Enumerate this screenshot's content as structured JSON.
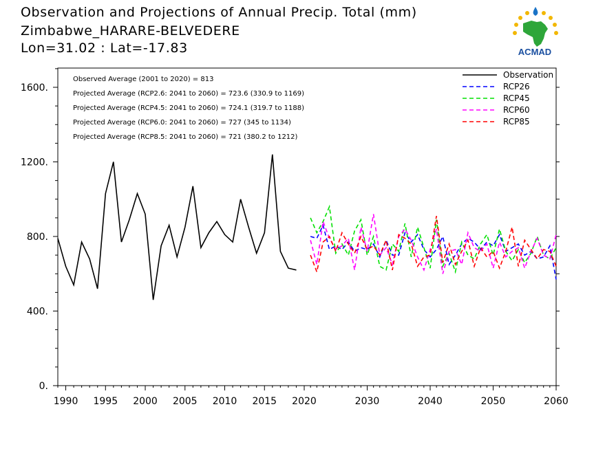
{
  "header": {
    "title": "Observation and Projections of Annual Precip. Total (mm)",
    "station": "Zimbabwe_HARARE-BELVEDERE",
    "coords": "Lon=31.02 : Lat=-17.83"
  },
  "logo": {
    "text": "ACMAD"
  },
  "annotations": [
    "Observed Average (2001 to 2020) = 813",
    "Projected Average (RCP2.6: 2041 to 2060) = 723.6 (330.9 to 1169)",
    "Projected Average (RCP4.5: 2041 to 2060) = 724.1 (319.7 to 1188)",
    "Projected Average (RCP6.0: 2041 to 2060) = 727 (345 to 1134)",
    "Projected Average (RCP8.5: 2041 to 2060) = 721 (380.2 to 1212)"
  ],
  "colors": {
    "Observation": "#000000",
    "RCP26": "#0000ff",
    "RCP45": "#00e000",
    "RCP60": "#ff00ff",
    "RCP85": "#ff0000"
  },
  "chart_data": {
    "type": "line",
    "title": "Observation and Projections of Annual Precip. Total (mm)",
    "xlabel": "",
    "ylabel": "",
    "xlim": [
      1989,
      2060
    ],
    "ylim": [
      0,
      1700
    ],
    "x_ticks": [
      "1990",
      "1995",
      "2000",
      "2005",
      "2010",
      "2015",
      "2020",
      "2030",
      "2040",
      "2050",
      "2060"
    ],
    "x_tick_values": [
      1990,
      1995,
      2000,
      2005,
      2010,
      2015,
      2020,
      2030,
      2040,
      2050,
      2060
    ],
    "y_ticks": [
      "0.",
      "400.",
      "800.",
      "1200.",
      "1600."
    ],
    "y_tick_values": [
      0,
      400,
      800,
      1200,
      1600
    ],
    "legend_position": "top-right",
    "series": [
      {
        "name": "Observation",
        "style": "solid",
        "x": [
          1989,
          1990,
          1991,
          1992,
          1993,
          1994,
          1995,
          1996,
          1997,
          1998,
          1999,
          2000,
          2001,
          2002,
          2003,
          2004,
          2005,
          2006,
          2007,
          2008,
          2009,
          2010,
          2011,
          2012,
          2013,
          2014,
          2015,
          2016,
          2017,
          2018,
          2019
        ],
        "values": [
          790,
          640,
          540,
          770,
          680,
          520,
          1030,
          1200,
          770,
          890,
          1030,
          920,
          460,
          750,
          860,
          690,
          850,
          1070,
          740,
          820,
          880,
          810,
          770,
          1000,
          850,
          710,
          820,
          1240,
          720,
          630,
          620
        ]
      },
      {
        "name": "RCP26",
        "style": "dashed",
        "x_start": 2021,
        "values": [
          800,
          790,
          860,
          730,
          750,
          730,
          770,
          720,
          740,
          730,
          760,
          690,
          780,
          700,
          700,
          820,
          770,
          810,
          730,
          690,
          730,
          800,
          650,
          700,
          760,
          790,
          770,
          730,
          770,
          750,
          810,
          720,
          740,
          760,
          700,
          720,
          680,
          690,
          750,
          570
        ]
      },
      {
        "name": "RCP45",
        "style": "dashed",
        "x_start": 2021,
        "values": [
          900,
          820,
          880,
          960,
          710,
          760,
          700,
          830,
          890,
          700,
          800,
          640,
          620,
          760,
          720,
          870,
          690,
          850,
          740,
          630,
          890,
          640,
          710,
          610,
          770,
          700,
          680,
          760,
          810,
          700,
          840,
          720,
          670,
          730,
          660,
          710,
          800,
          700,
          680,
          740
        ]
      },
      {
        "name": "RCP60",
        "style": "dashed",
        "x_start": 2021,
        "values": [
          780,
          650,
          880,
          790,
          730,
          750,
          790,
          620,
          850,
          720,
          920,
          700,
          740,
          650,
          800,
          840,
          780,
          690,
          620,
          730,
          840,
          600,
          720,
          730,
          650,
          820,
          740,
          720,
          760,
          630,
          770,
          690,
          720,
          740,
          630,
          720,
          790,
          700,
          680,
          810
        ]
      },
      {
        "name": "RCP85",
        "style": "dashed",
        "x_start": 2021,
        "values": [
          700,
          610,
          770,
          800,
          720,
          820,
          760,
          710,
          800,
          730,
          750,
          700,
          780,
          620,
          810,
          790,
          760,
          640,
          690,
          700,
          910,
          660,
          760,
          650,
          720,
          780,
          640,
          740,
          690,
          720,
          630,
          720,
          850,
          640,
          780,
          730,
          680,
          730,
          720,
          640
        ]
      }
    ]
  }
}
